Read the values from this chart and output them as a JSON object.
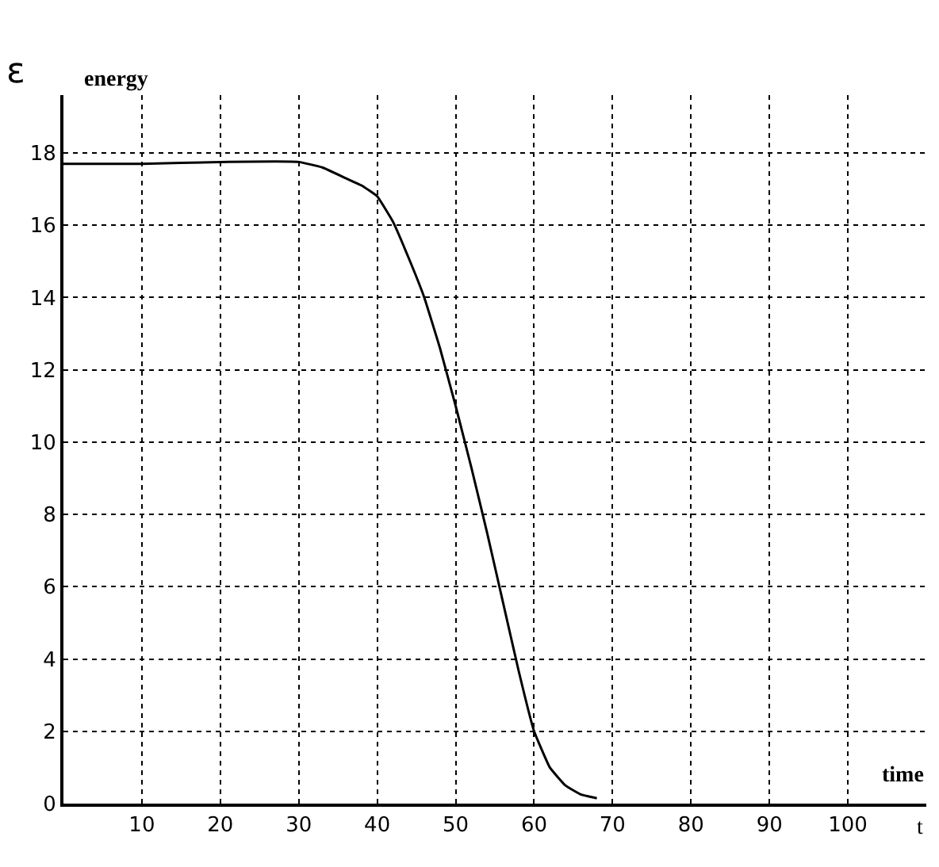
{
  "chart_data": {
    "type": "line",
    "xlabel": "t",
    "ylabel": "ε",
    "annotations": [
      "energy",
      "time"
    ],
    "x": [
      0,
      10,
      20,
      30,
      33,
      36,
      38,
      40,
      42,
      44,
      46,
      48,
      50,
      52,
      54,
      56,
      58,
      60,
      62,
      64,
      66,
      68
    ],
    "series": [
      {
        "color": "#000000",
        "values": [
          17.7,
          17.7,
          17.75,
          17.75,
          17.6,
          17.3,
          17.1,
          16.8,
          16.1,
          15.1,
          14.0,
          12.6,
          11.0,
          9.3,
          7.5,
          5.6,
          3.7,
          2.0,
          1.0,
          0.5,
          0.25,
          0.15
        ]
      }
    ],
    "xlim": [
      0,
      110
    ],
    "ylim": [
      0,
      19.6
    ],
    "xticks": [
      10,
      20,
      30,
      40,
      50,
      60,
      70,
      80,
      90,
      100
    ],
    "yticks": [
      0,
      2,
      4,
      6,
      8,
      10,
      12,
      14,
      16,
      18
    ],
    "grid": true,
    "marker": "none",
    "line_style": "solid"
  }
}
